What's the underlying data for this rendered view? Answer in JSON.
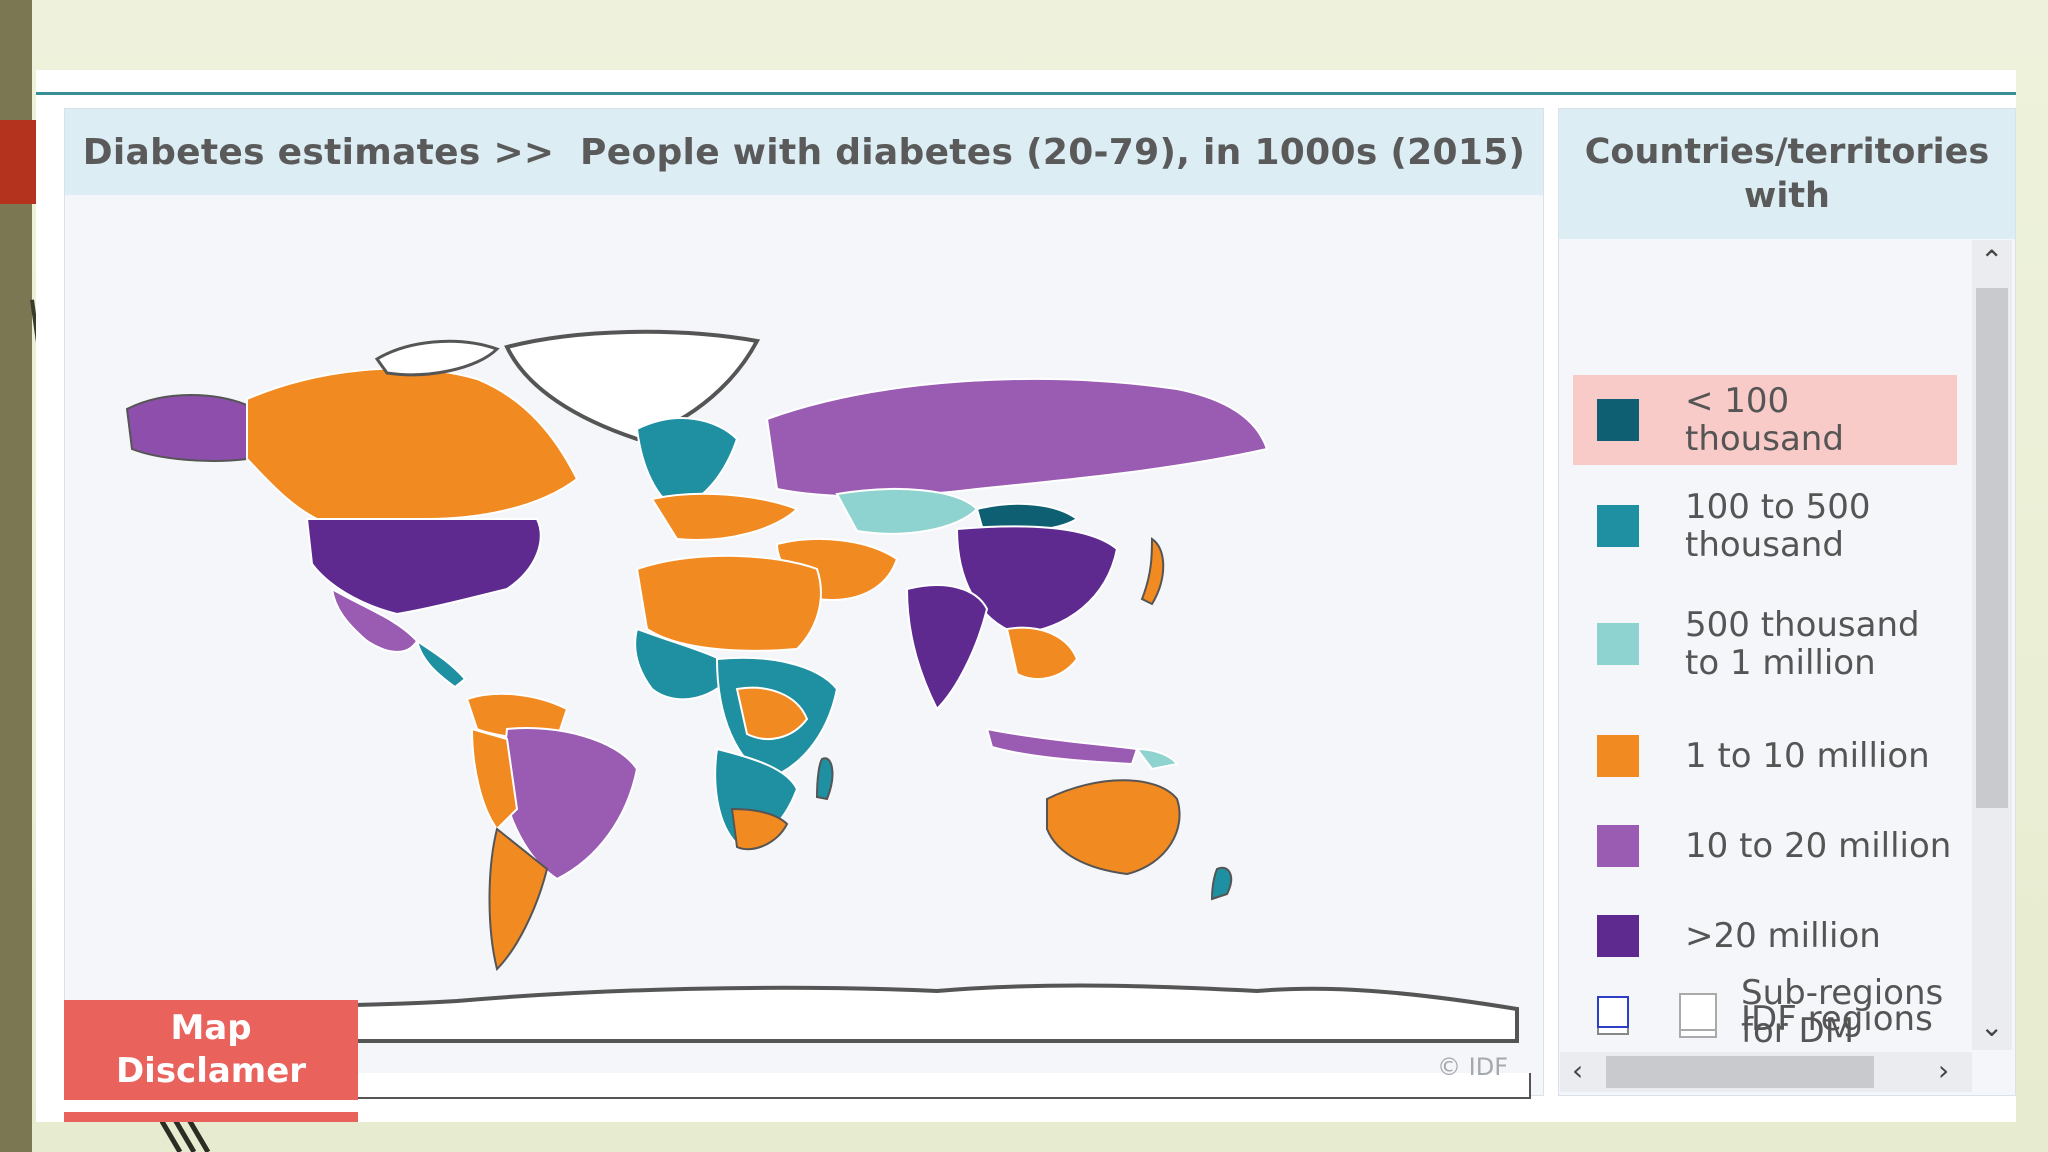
{
  "map_panel": {
    "title": "Diabetes estimates >>  People with diabetes (20-79), in 1000s (2015)",
    "copyright": "© IDF",
    "disclaimer_label": "Map\nDisclamer"
  },
  "legend": {
    "title": "Countries/territories with",
    "items": [
      {
        "label": "< 100 thousand",
        "color": "#0e5f72",
        "selected": true
      },
      {
        "label": "100 to 500\nthousand",
        "color": "#1f8fa2",
        "selected": false
      },
      {
        "label": "500 thousand\nto 1 million",
        "color": "#8ed3cf",
        "selected": false
      },
      {
        "label": "1 to 10 million",
        "color": "#f28a22",
        "selected": false
      },
      {
        "label": "10 to 20 million",
        "color": "#9a5bb3",
        "selected": false
      },
      {
        "label": ">20 million",
        "color": "#5e2a8f",
        "selected": false
      }
    ],
    "options": [
      {
        "label": "IDF regions",
        "checked": true
      },
      {
        "label": "Sub-regions\nfor DM",
        "checked": false
      }
    ]
  },
  "colors": {
    "header_bg": "#dcedf4",
    "disclaimer": "#e9625c",
    "ocean": "#f4f6fa"
  },
  "icons": {
    "scroll_up": "chevron-up-icon",
    "scroll_down": "chevron-down-icon",
    "scroll_left": "chevron-left-icon",
    "scroll_right": "chevron-right-icon"
  }
}
